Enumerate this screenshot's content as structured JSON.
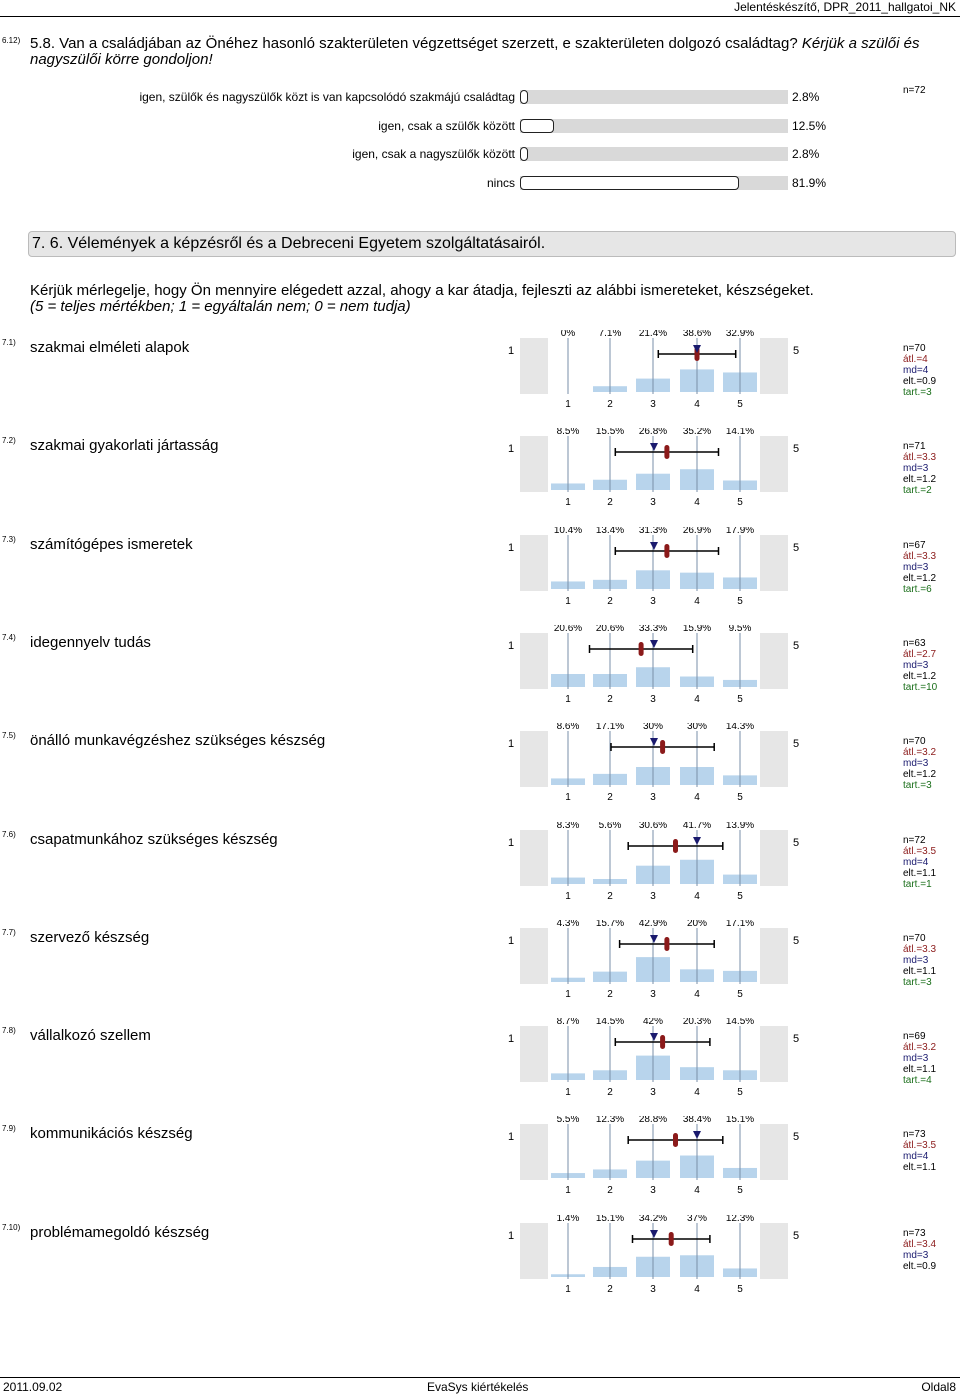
{
  "header": {
    "right": "Jelentéskészítő, DPR_2011_hallgatoi_NK"
  },
  "q612": {
    "num": "6.12)",
    "text": "5.8. Van a családjában az Önéhez hasonló szakterületen végzettséget szerzett, e szakterületen dolgozó családtag?",
    "note": "Kérjük a szülői és nagyszülői körre gondoljon!",
    "n": "n=72",
    "options": [
      {
        "label": "igen, szülők és nagyszülők közt is van kapcsolódó szakmájú családtag",
        "pct": "2.8%",
        "value": 2.8
      },
      {
        "label": "igen, csak a szülők között",
        "pct": "12.5%",
        "value": 12.5
      },
      {
        "label": "igen, csak a nagyszülők között",
        "pct": "2.8%",
        "value": 2.8
      },
      {
        "label": "nincs",
        "pct": "81.9%",
        "value": 81.9
      }
    ]
  },
  "section": {
    "title": "7. 6. Vélemények a képzésről és a Debreceni Egyetem szolgáltatásairól."
  },
  "intro": {
    "line1": "Kérjük mérlegelje, hogy Ön mennyire elégedett azzal, ahogy a kar átadja, fejleszti az alábbi ismereteket, készségeket.",
    "line2": "(5 = teljes mértékben; 1 = egyáltalán nem; 0 = nem tudja)"
  },
  "scale": {
    "low": "1",
    "high": "5",
    "ticks": [
      "1",
      "2",
      "3",
      "4",
      "5"
    ]
  },
  "items": [
    {
      "num": "7.1)",
      "title": "szakmai elméleti alapok",
      "pcts": [
        "0%",
        "7.1%",
        "21.4%",
        "38.6%",
        "32.9%"
      ],
      "values": [
        0,
        7.1,
        21.4,
        38.6,
        32.9
      ],
      "mean": 4.0,
      "median": 4,
      "sd": 0.9,
      "stats": {
        "n": "n=70",
        "atl": "átl.=4",
        "md": "md=4",
        "elt": "elt.=0.9",
        "tart": "tart.=3"
      }
    },
    {
      "num": "7.2)",
      "title": "szakmai gyakorlati jártasság",
      "pcts": [
        "8.5%",
        "15.5%",
        "26.8%",
        "35.2%",
        "14.1%"
      ],
      "values": [
        8.5,
        15.5,
        26.8,
        35.2,
        14.1
      ],
      "mean": 3.3,
      "median": 3,
      "sd": 1.2,
      "stats": {
        "n": "n=71",
        "atl": "átl.=3.3",
        "md": "md=3",
        "elt": "elt.=1.2",
        "tart": "tart.=2"
      }
    },
    {
      "num": "7.3)",
      "title": "számítógépes ismeretek",
      "pcts": [
        "10.4%",
        "13.4%",
        "31.3%",
        "26.9%",
        "17.9%"
      ],
      "values": [
        10.4,
        13.4,
        31.3,
        26.9,
        17.9
      ],
      "mean": 3.3,
      "median": 3,
      "sd": 1.2,
      "stats": {
        "n": "n=67",
        "atl": "átl.=3.3",
        "md": "md=3",
        "elt": "elt.=1.2",
        "tart": "tart.=6"
      }
    },
    {
      "num": "7.4)",
      "title": "idegennyelv tudás",
      "pcts": [
        "20.6%",
        "20.6%",
        "33.3%",
        "15.9%",
        "9.5%"
      ],
      "values": [
        20.6,
        20.6,
        33.3,
        15.9,
        9.5
      ],
      "mean": 2.7,
      "median": 3,
      "sd": 1.2,
      "stats": {
        "n": "n=63",
        "atl": "átl.=2.7",
        "md": "md=3",
        "elt": "elt.=1.2",
        "tart": "tart.=10"
      }
    },
    {
      "num": "7.5)",
      "title": "önálló munkavégzéshez szükséges készség",
      "pcts": [
        "8.6%",
        "17.1%",
        "30%",
        "30%",
        "14.3%"
      ],
      "values": [
        8.6,
        17.1,
        30,
        30,
        14.3
      ],
      "mean": 3.2,
      "median": 3,
      "sd": 1.2,
      "stats": {
        "n": "n=70",
        "atl": "átl.=3.2",
        "md": "md=3",
        "elt": "elt.=1.2",
        "tart": "tart.=3"
      }
    },
    {
      "num": "7.6)",
      "title": "csapatmunkához szükséges készség",
      "pcts": [
        "8.3%",
        "5.6%",
        "30.6%",
        "41.7%",
        "13.9%"
      ],
      "values": [
        8.3,
        5.6,
        30.6,
        41.7,
        13.9
      ],
      "mean": 3.5,
      "median": 4,
      "sd": 1.1,
      "stats": {
        "n": "n=72",
        "atl": "átl.=3.5",
        "md": "md=4",
        "elt": "elt.=1.1",
        "tart": "tart.=1"
      }
    },
    {
      "num": "7.7)",
      "title": "szervező készség",
      "pcts": [
        "4.3%",
        "15.7%",
        "42.9%",
        "20%",
        "17.1%"
      ],
      "values": [
        4.3,
        15.7,
        42.9,
        20,
        17.1
      ],
      "mean": 3.3,
      "median": 3,
      "sd": 1.1,
      "stats": {
        "n": "n=70",
        "atl": "átl.=3.3",
        "md": "md=3",
        "elt": "elt.=1.1",
        "tart": "tart.=3"
      }
    },
    {
      "num": "7.8)",
      "title": "vállalkozó szellem",
      "pcts": [
        "8.7%",
        "14.5%",
        "42%",
        "20.3%",
        "14.5%"
      ],
      "values": [
        8.7,
        14.5,
        42,
        20.3,
        14.5
      ],
      "mean": 3.2,
      "median": 3,
      "sd": 1.1,
      "stats": {
        "n": "n=69",
        "atl": "átl.=3.2",
        "md": "md=3",
        "elt": "elt.=1.1",
        "tart": "tart.=4"
      }
    },
    {
      "num": "7.9)",
      "title": "kommunikációs készség",
      "pcts": [
        "5.5%",
        "12.3%",
        "28.8%",
        "38.4%",
        "15.1%"
      ],
      "values": [
        5.5,
        12.3,
        28.8,
        38.4,
        15.1
      ],
      "mean": 3.5,
      "median": 4,
      "sd": 1.1,
      "stats": {
        "n": "n=73",
        "atl": "átl.=3.5",
        "md": "md=4",
        "elt": "elt.=1.1",
        "tart": ""
      }
    },
    {
      "num": "7.10)",
      "title": "problémamegoldó készség",
      "pcts": [
        "1.4%",
        "15.1%",
        "34.2%",
        "37%",
        "12.3%"
      ],
      "values": [
        1.4,
        15.1,
        34.2,
        37,
        12.3
      ],
      "mean": 3.4,
      "median": 3,
      "sd": 0.9,
      "stats": {
        "n": "n=73",
        "atl": "átl.=3.4",
        "md": "md=3",
        "elt": "elt.=0.9",
        "tart": ""
      }
    }
  ],
  "colors": {
    "bar": "#b8d4ec",
    "frame": "#e6e6e6",
    "mean": "#8b1a1a",
    "median": "#1a1a6e",
    "tart": "#1a6e1a"
  },
  "footer": {
    "left": "2011.09.02",
    "center": "EvaSys kiértékelés",
    "right": "Oldal8"
  }
}
